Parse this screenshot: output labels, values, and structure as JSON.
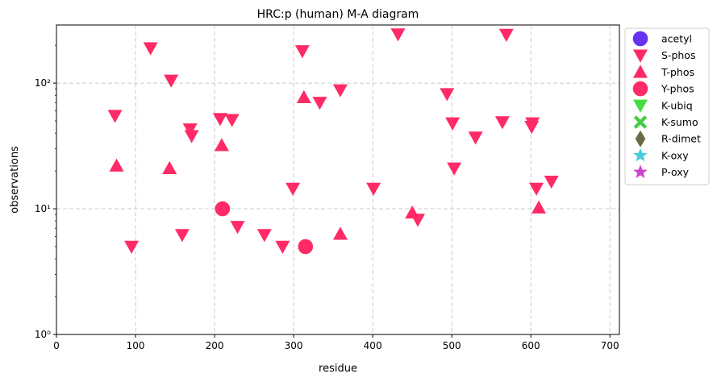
{
  "chart_data": {
    "type": "scatter",
    "title": "HRC:p (human) M-A diagram",
    "xlabel": "residue",
    "ylabel": "observations",
    "xlim": [
      0,
      712
    ],
    "ylim": [
      1,
      290
    ],
    "yscale": "log",
    "grid": true,
    "legend_position": "outside-right",
    "x_ticks": [
      0,
      100,
      200,
      300,
      400,
      500,
      600,
      700
    ],
    "y_ticks": [
      1,
      10,
      100
    ],
    "y_tick_labels": [
      "10⁰",
      "10¹",
      "10²"
    ],
    "series": [
      {
        "name": "acetyl",
        "marker": "circle",
        "color": "#6633ee",
        "points": []
      },
      {
        "name": "S-phos",
        "marker": "triangle-down",
        "color": "#ff2a66",
        "points": [
          [
            74,
            55
          ],
          [
            95,
            5
          ],
          [
            119,
            190
          ],
          [
            145,
            105
          ],
          [
            159,
            6.2
          ],
          [
            169,
            43
          ],
          [
            171,
            38
          ],
          [
            207,
            52
          ],
          [
            222,
            51
          ],
          [
            229,
            7.2
          ],
          [
            263,
            6.2
          ],
          [
            286,
            5
          ],
          [
            299,
            14.5
          ],
          [
            311,
            180
          ],
          [
            333,
            70
          ],
          [
            359,
            88
          ],
          [
            401,
            14.5
          ],
          [
            432,
            245
          ],
          [
            457,
            8.2
          ],
          [
            494,
            82
          ],
          [
            501,
            48
          ],
          [
            503,
            21
          ],
          [
            530,
            37
          ],
          [
            564,
            49
          ],
          [
            569,
            243
          ],
          [
            601,
            45
          ],
          [
            602,
            48
          ],
          [
            607,
            14.5
          ],
          [
            626,
            16.5
          ]
        ]
      },
      {
        "name": "T-phos",
        "marker": "triangle-up",
        "color": "#ff2a66",
        "points": [
          [
            76,
            22
          ],
          [
            143,
            21
          ],
          [
            209,
            32
          ],
          [
            313,
            77
          ],
          [
            359,
            6.3
          ],
          [
            450,
            9.3
          ],
          [
            610,
            10.2
          ]
        ]
      },
      {
        "name": "Y-phos",
        "marker": "circle",
        "color": "#ff2a66",
        "points": [
          [
            210,
            10
          ],
          [
            315,
            5
          ]
        ]
      },
      {
        "name": "K-ubiq",
        "marker": "triangle-down",
        "color": "#44dd44",
        "points": []
      },
      {
        "name": "K-sumo",
        "marker": "x",
        "color": "#44cc44",
        "points": []
      },
      {
        "name": "R-dimet",
        "marker": "diamond",
        "color": "#6b6b44",
        "points": []
      },
      {
        "name": "K-oxy",
        "marker": "star",
        "color": "#44ccdd",
        "points": []
      },
      {
        "name": "P-oxy",
        "marker": "star",
        "color": "#cc44cc",
        "points": []
      }
    ]
  }
}
